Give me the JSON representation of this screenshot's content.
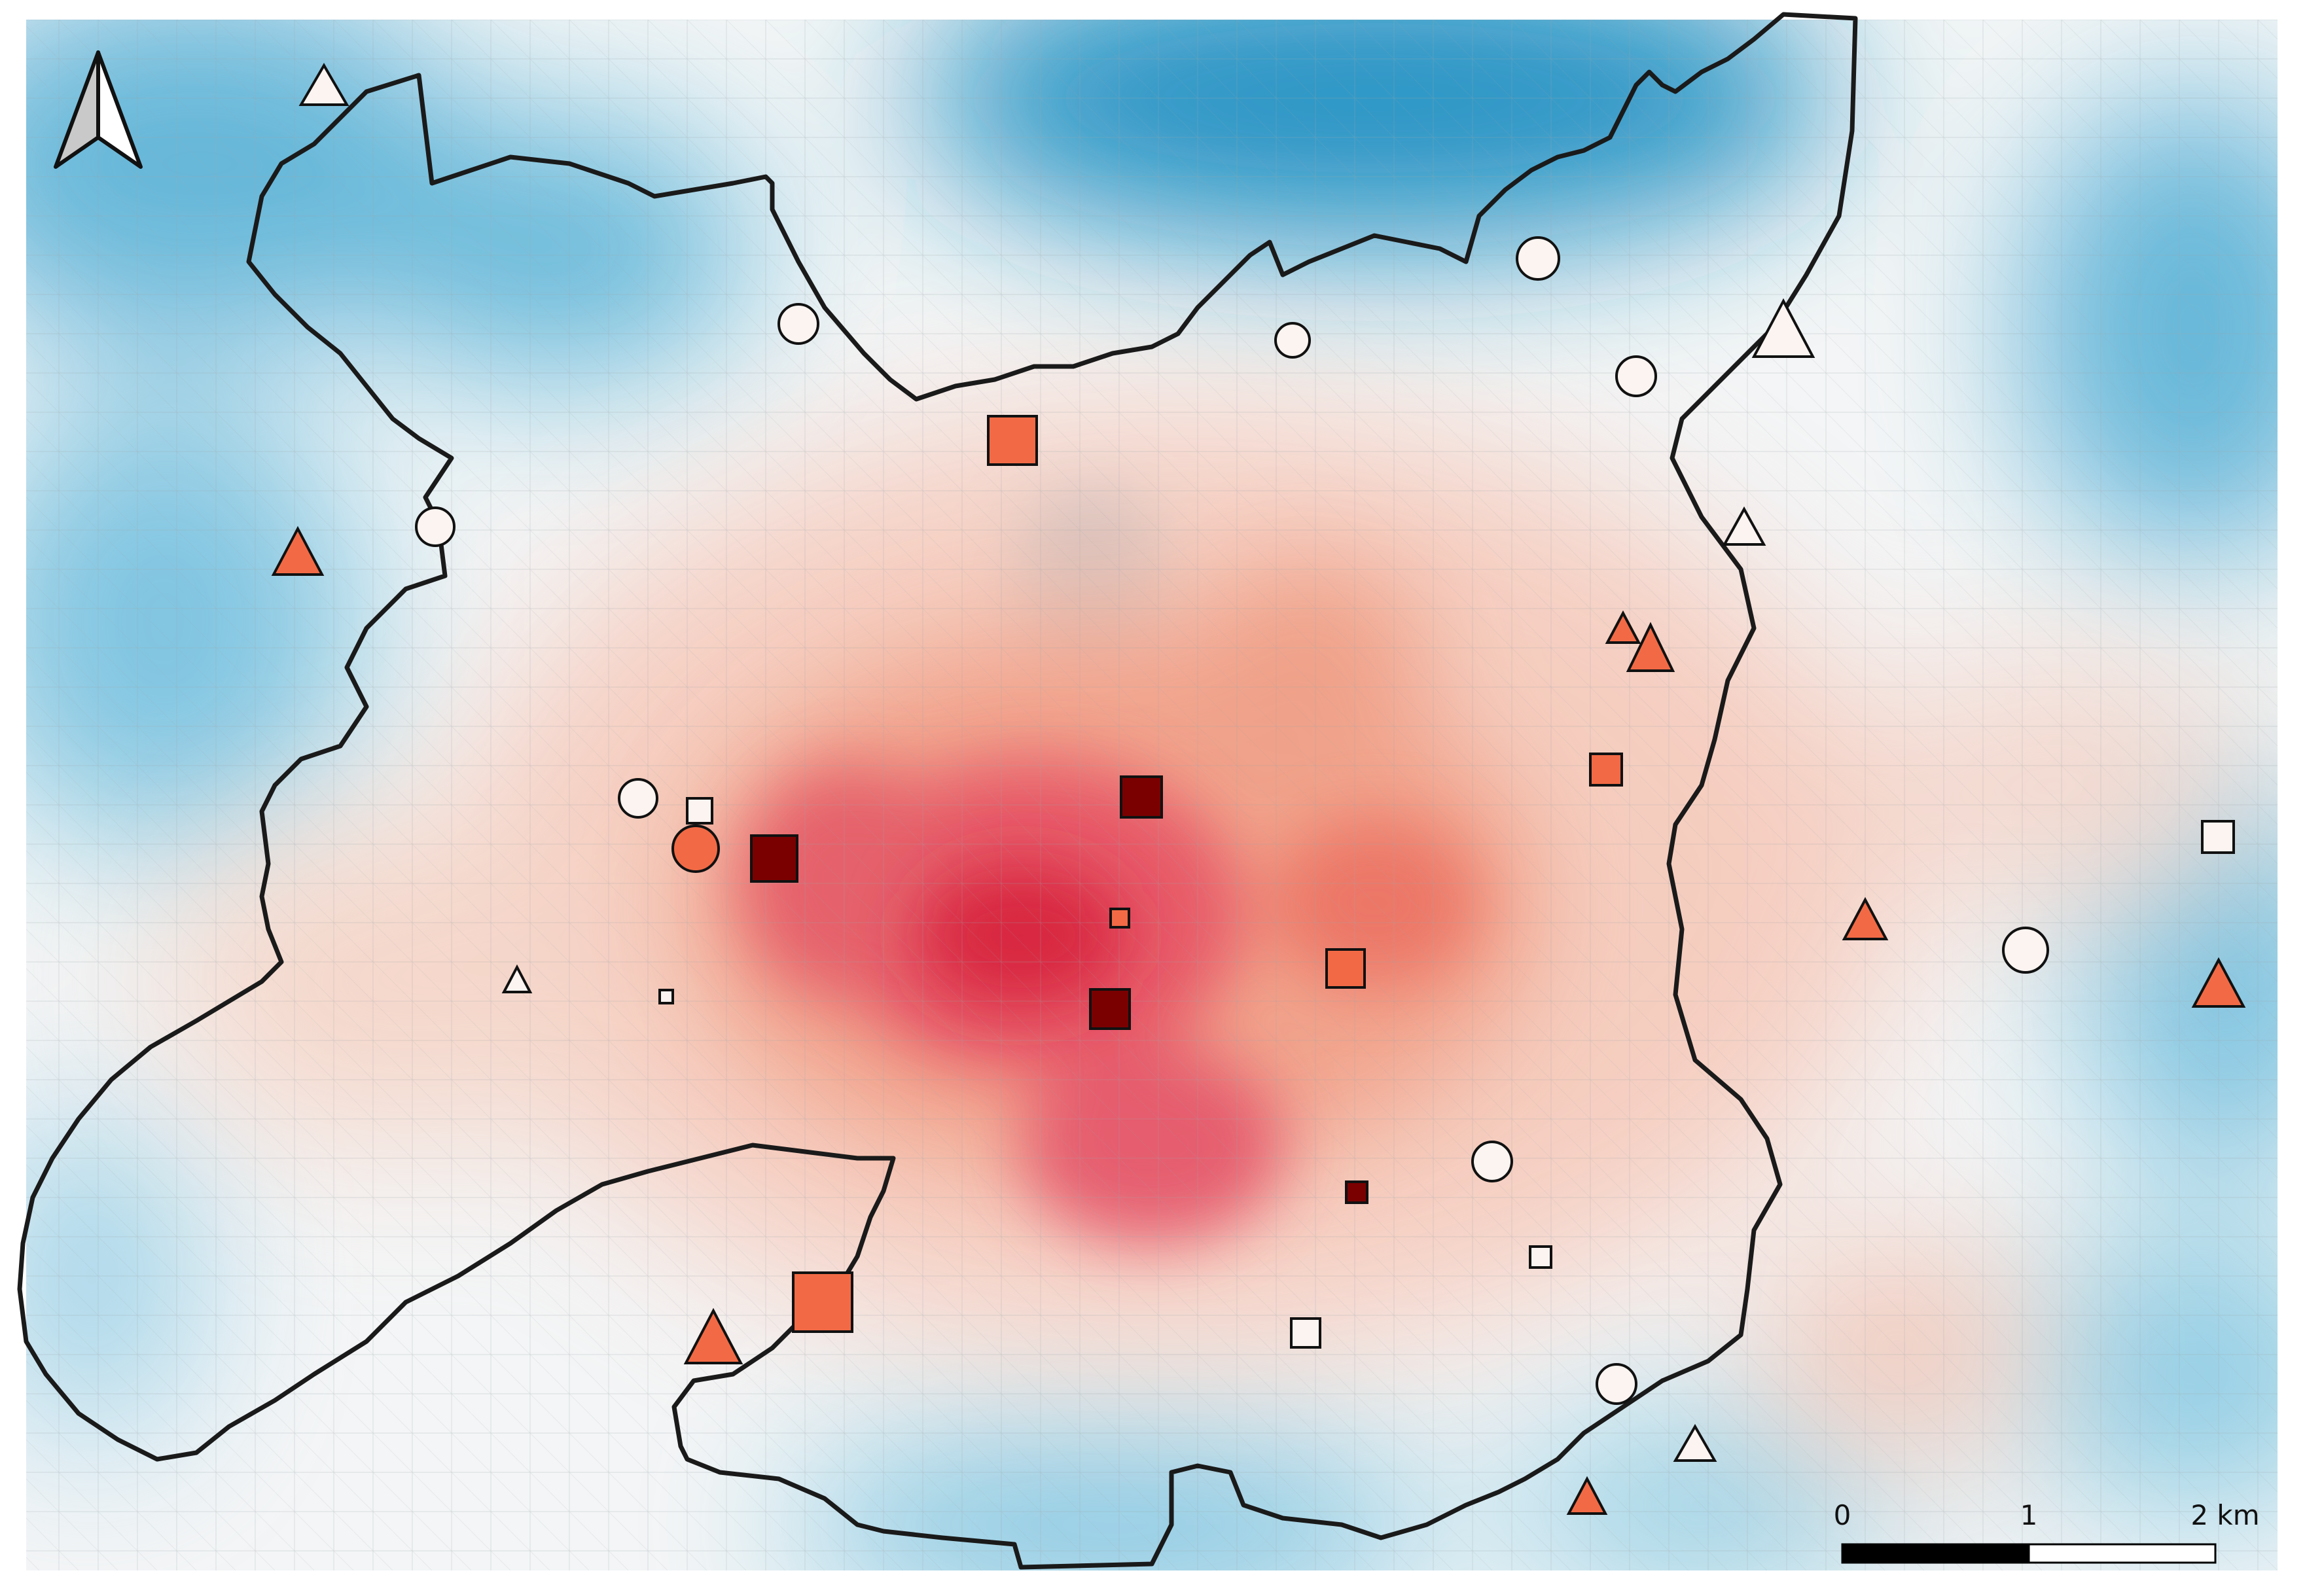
{
  "map": {
    "north_arrow": {
      "icon": "north-arrow-icon"
    },
    "scale_bar": {
      "labels": [
        "0",
        "1",
        "2 km"
      ],
      "colors": {
        "filled": "#000000",
        "empty": "#ffffff"
      }
    },
    "colors": {
      "cold": "#1a8fc4",
      "cold_light": "#bfe2f0",
      "neutral": "#f6f3f1",
      "warm_light": "#f6c8b8",
      "warm": "#ef7a5f",
      "hot": "#d6203a",
      "marker_dark": "#7a0000",
      "marker_orange": "#f26a45",
      "marker_white": "#fbf4f1",
      "boundary": "#1a1a1a"
    },
    "symbol_legend": {
      "circle": "circle-marker",
      "square": "square-marker",
      "triangle": "triangle-marker"
    }
  }
}
